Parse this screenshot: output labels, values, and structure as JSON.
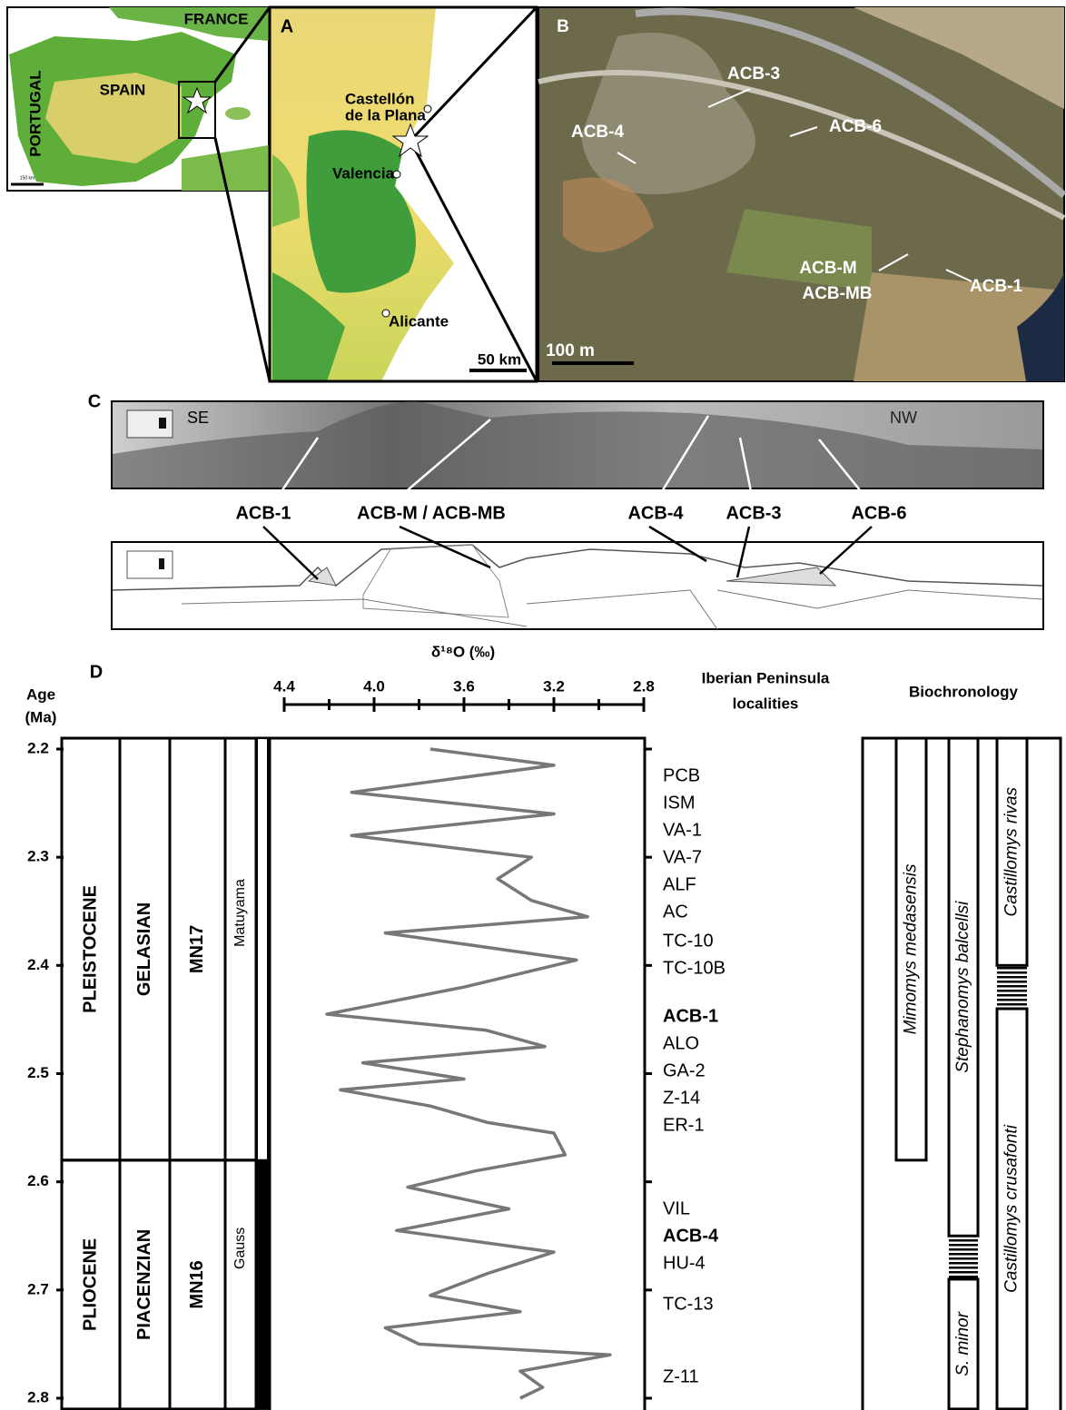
{
  "inset_map": {
    "labels": [
      "FRANCE",
      "SPAIN",
      "PORTUGAL"
    ],
    "scale": "150 km"
  },
  "panel_a": {
    "letter": "A",
    "places": [
      "Castellón",
      "de la Plana",
      "Valencia",
      "Alicante"
    ],
    "scale": "50 km"
  },
  "panel_b": {
    "letter": "B",
    "sites": [
      "ACB-3",
      "ACB-4",
      "ACB-6",
      "ACB-M",
      "ACB-MB",
      "ACB-1"
    ],
    "scale": "100 m"
  },
  "panel_c": {
    "letter": "C",
    "directions": [
      "SE",
      "NW"
    ],
    "sites": [
      "ACB-1",
      "ACB-M / ACB-MB",
      "ACB-4",
      "ACB-3",
      "ACB-6"
    ]
  },
  "panel_d": {
    "letter": "D",
    "age_label": [
      "Age",
      "(Ma)"
    ],
    "age_lim": [
      2.2,
      2.8
    ],
    "age_ticks": [
      2.2,
      2.3,
      2.4,
      2.5,
      2.6,
      2.7,
      2.8
    ],
    "d18o_title": "δ¹⁸O (‰)",
    "d18o_lim": [
      4.4,
      2.8
    ],
    "d18o_ticks": [
      4.4,
      {
        "value": 4,
        "label": "4.0"
      },
      3.6,
      3.2,
      2.8
    ],
    "d18o_minor_ticks": [
      4.2,
      3.8,
      3.4,
      3.0
    ],
    "curve": {
      "age": [
        2.2,
        2.215,
        2.24,
        2.26,
        2.28,
        2.3,
        2.32,
        2.34,
        2.355,
        2.37,
        2.395,
        2.42,
        2.445,
        2.46,
        2.475,
        2.49,
        2.505,
        2.515,
        2.53,
        2.545,
        2.555,
        2.575,
        2.59,
        2.605,
        2.625,
        2.645,
        2.665,
        2.685,
        2.705,
        2.72,
        2.735,
        2.75,
        2.76,
        2.775,
        2.79,
        2.8
      ],
      "d18o": [
        3.75,
        3.2,
        4.1,
        3.2,
        4.1,
        3.3,
        3.45,
        3.3,
        3.05,
        3.95,
        3.1,
        3.6,
        4.21,
        3.5,
        3.24,
        4.05,
        3.6,
        4.15,
        3.75,
        3.5,
        3.2,
        3.15,
        3.55,
        3.85,
        3.4,
        3.9,
        3.2,
        3.5,
        3.75,
        3.35,
        3.95,
        3.8,
        2.95,
        3.35,
        3.25,
        3.35
      ]
    },
    "columns": {
      "epochs": [
        {
          "name": "PLEISTOCENE",
          "start": 2.19,
          "end": 2.58
        },
        {
          "name": "PLIOCENE",
          "start": 2.58,
          "end": 2.81
        }
      ],
      "stages": [
        {
          "name": "GELASIAN",
          "start": 2.19,
          "end": 2.58
        },
        {
          "name": "PIACENZIAN",
          "start": 2.58,
          "end": 2.81
        }
      ],
      "mn_zones": [
        {
          "name": "MN17",
          "start": 2.19,
          "end": 2.58
        },
        {
          "name": "MN16",
          "start": 2.58,
          "end": 2.81
        }
      ],
      "chrons": [
        {
          "name": "Matuyama",
          "start": 2.19,
          "end": 2.58
        },
        {
          "name": "Gauss",
          "start": 2.58,
          "end": 2.81
        }
      ]
    },
    "localities": {
      "title": [
        "Iberian Peninsula",
        "localities"
      ],
      "items": [
        {
          "name": "PCB"
        },
        {
          "name": "ISM"
        },
        {
          "name": "VA-1"
        },
        {
          "name": "VA-7"
        },
        {
          "name": "ALF"
        },
        {
          "name": "AC"
        },
        {
          "name": "TC-10"
        },
        {
          "name": "TC-10B"
        },
        {
          "name": "ACB-1",
          "bold": true
        },
        {
          "name": "ALO"
        },
        {
          "name": "GA-2"
        },
        {
          "name": "Z-14"
        },
        {
          "name": "ER-1"
        },
        {
          "name": "VIL"
        },
        {
          "name": "ACB-4",
          "bold": true
        },
        {
          "name": "HU-4"
        },
        {
          "name": "TC-13"
        },
        {
          "name": "Z-11"
        }
      ]
    },
    "biochronology": {
      "title": "Biochronology",
      "taxa": [
        {
          "name": "Mimomys medasensis",
          "start": 2.19,
          "end": 2.58
        },
        {
          "name": "Stephanomys balcellsi",
          "start": 2.19,
          "end": 2.65,
          "hatched_end": 2.69
        },
        {
          "name": "S. minor",
          "start": 2.69,
          "end": 2.81
        },
        {
          "name": "Castillomys rivas",
          "start": 2.19,
          "end": 2.4,
          "hatched_end": 2.44
        },
        {
          "name": "Castillomys crusafonti",
          "start": 2.44,
          "end": 2.81
        }
      ]
    }
  }
}
